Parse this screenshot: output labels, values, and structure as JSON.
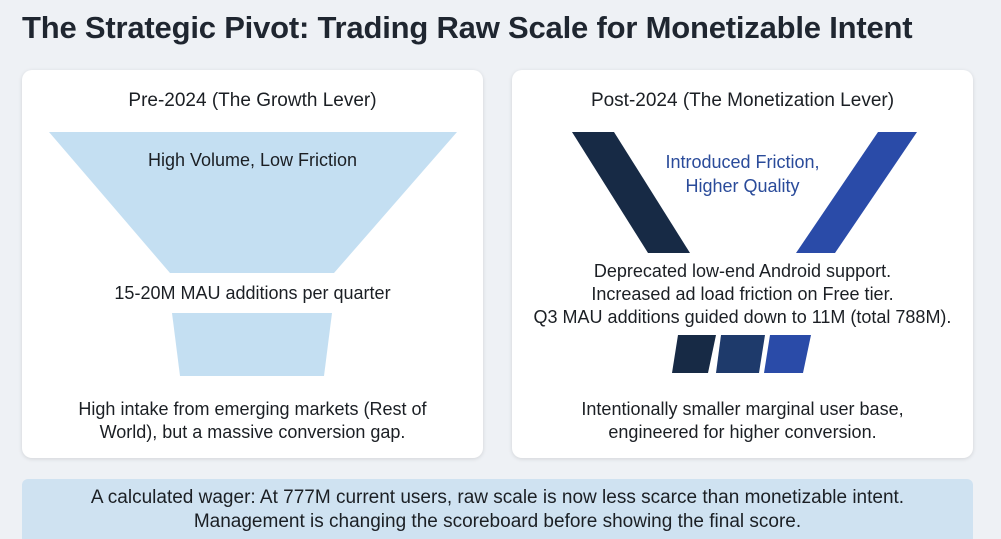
{
  "title": "The Strategic Pivot: Trading Raw Scale for Monetizable Intent",
  "colors": {
    "funnel_light": "#c4dff2",
    "funnel_dark": "#172a45",
    "funnel_blue": "#2a4ba8",
    "accent_text": "#2a4b9a",
    "footer_bg": "#cfe2f1"
  },
  "left_panel": {
    "heading": "Pre-2024 (The Growth Lever)",
    "top_label": "High Volume, Low Friction",
    "mid_label": "15-20M MAU additions per quarter",
    "bottom_line1": "High intake from emerging markets (Rest of",
    "bottom_line2": "World), but a massive conversion gap."
  },
  "right_panel": {
    "heading": "Post-2024 (The Monetization Lever)",
    "top_line1": "Introduced Friction,",
    "top_line2": "Higher Quality",
    "mid_line1": "Deprecated low-end Android support.",
    "mid_line2": "Increased ad load friction on Free tier.",
    "mid_line3": "Q3 MAU additions guided down to 11M (total 788M).",
    "bottom_line1": "Intentionally smaller marginal user base,",
    "bottom_line2": "engineered for higher conversion."
  },
  "footer": {
    "line1": "A calculated wager: At 777M current users, raw scale is now less scarce than monetizable intent.",
    "line2": "Management is changing the scoreboard before showing the final score."
  }
}
